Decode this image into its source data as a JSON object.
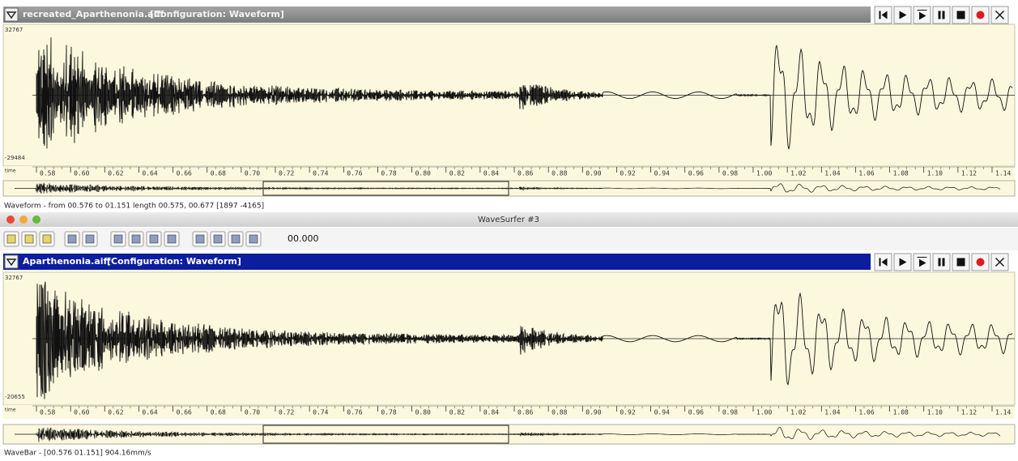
{
  "window": {
    "title": "WaveSurfer #3",
    "time": "00.000"
  },
  "panes": [
    {
      "file": "recreated_Aparthenonia.aiff",
      "config": "[Configuration: Waveform]",
      "ymax": "32767",
      "ymin": "-29484",
      "axis_unit": "time",
      "ticks": [
        "0.58",
        "0.60",
        "0.62",
        "0.64",
        "0.66",
        "0.68",
        "0.70",
        "0.72",
        "0.74",
        "0.76",
        "0.78",
        "0.80",
        "0.82",
        "0.84",
        "0.86",
        "0.88",
        "0.90",
        "0.92",
        "0.94",
        "0.96",
        "0.98",
        "1.00",
        "1.02",
        "1.04",
        "1.06",
        "1.08",
        "1.10",
        "1.12",
        "1.14"
      ],
      "status": "Waveform - from 00.576 to 01.151 length 00.575, 00.677 [1897 -4165]"
    },
    {
      "file": "Aparthenonia.aiff",
      "config": "[Configuration: Waveform]",
      "ymax": "32767",
      "ymin": "-20655",
      "axis_unit": "time",
      "ticks": [
        "0.58",
        "0.60",
        "0.62",
        "0.64",
        "0.66",
        "0.68",
        "0.70",
        "0.72",
        "0.74",
        "0.76",
        "0.78",
        "0.80",
        "0.82",
        "0.84",
        "0.86",
        "0.88",
        "0.90",
        "0.92",
        "0.94",
        "0.96",
        "0.98",
        "1.00",
        "1.02",
        "1.04",
        "1.06",
        "1.08",
        "1.10",
        "1.12",
        "1.14"
      ],
      "status": "WaveBar - [00.576 01.151] 904.16mm/s"
    }
  ]
}
